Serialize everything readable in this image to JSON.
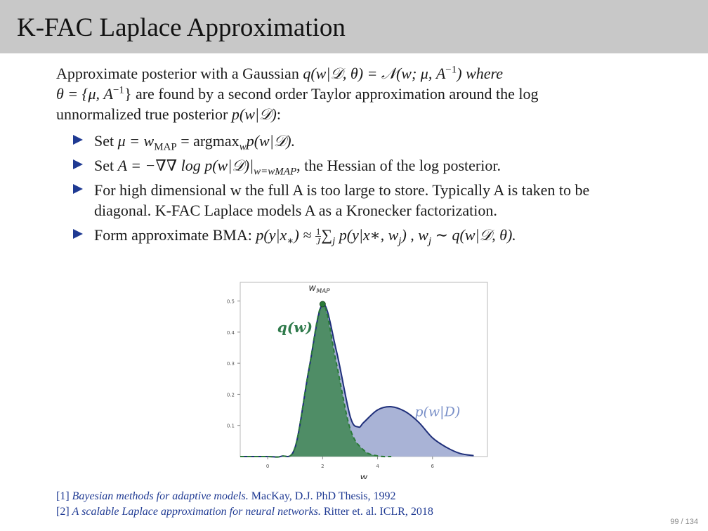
{
  "slide": {
    "title": "K-FAC Laplace Approximation",
    "page": "99 / 134"
  },
  "intro": {
    "line1_a": "Approximate posterior with a Gaussian ",
    "line1_b": "q(w|𝒟, θ) = 𝒩(w; μ, A",
    "line1_sup": "−1",
    "line1_c": ") where",
    "line2_a": "θ = {μ, A",
    "line2_sup": "−1",
    "line2_b": "} are found by a second order Taylor approximation around the log",
    "line3_a": "unnormalized true posterior ",
    "line3_b": "p(w|𝒟)",
    "line3_c": ":"
  },
  "bullets": {
    "b1_a": "Set ",
    "b1_b": "μ = w",
    "b1_sub": "MAP",
    "b1_c": " = argmax",
    "b1_sub2": "w",
    "b1_d": "p(w|𝒟).",
    "b2_a": "Set ",
    "b2_b": "A = −∇∇ log p(w|𝒟)|",
    "b2_sub": "w=wMAP",
    "b2_c": ", the Hessian of the log posterior.",
    "b3_line1": "For high dimensional w the full A is too large to store. Typically A is taken to be",
    "b3_line2": "diagonal. K-FAC Laplace models A as a Kronecker factorization.",
    "b4_a": "Form approximate BMA: ",
    "b4_b": "p(y|x",
    "b4_sub": "∗",
    "b4_c": ") ≈ ",
    "b4_frac_num": "1",
    "b4_frac_den": "J",
    "b4_d": "∑",
    "b4_sub2": "j",
    "b4_e": " p(y|x∗, w",
    "b4_sub3": "j",
    "b4_f": ") ,    w",
    "b4_sub4": "j",
    "b4_g": " ∼ q(w|𝒟, θ)."
  },
  "chart_data": {
    "type": "area",
    "xlabel": "w",
    "ylabel": "",
    "xlim": [
      -1,
      8
    ],
    "ylim": [
      0,
      0.56
    ],
    "xticks": [
      0,
      2,
      4,
      6
    ],
    "yticks": [
      0.1,
      0.2,
      0.3,
      0.4,
      0.5
    ],
    "ytick_labels": [
      "0.1",
      "0.2",
      "0.3",
      "0.4",
      "0.5"
    ],
    "grid": false,
    "annotations": {
      "map_label": "w",
      "map_label_sub": "MAP",
      "q_label": "q(w)",
      "p_label": "p(w|D)"
    },
    "series": [
      {
        "name": "p(w|D)",
        "style": "solid",
        "x": [
          -1,
          0,
          0.5,
          1,
          1.5,
          2,
          2.5,
          3,
          3.3,
          3.5,
          4,
          4.5,
          5,
          5.5,
          6,
          6.5,
          7,
          7.5
        ],
        "values": [
          0,
          0,
          0.001,
          0.03,
          0.28,
          0.49,
          0.34,
          0.13,
          0.095,
          0.11,
          0.15,
          0.16,
          0.145,
          0.11,
          0.06,
          0.03,
          0.01,
          0.003
        ]
      },
      {
        "name": "q(w)",
        "style": "dashed",
        "x": [
          -1,
          0,
          0.5,
          1,
          1.5,
          2,
          2.5,
          3,
          3.5,
          4,
          4.5
        ],
        "values": [
          0,
          0,
          0.001,
          0.03,
          0.28,
          0.49,
          0.3,
          0.09,
          0.02,
          0.002,
          0
        ]
      }
    ],
    "map_point": {
      "x": 2,
      "y": 0.49
    }
  },
  "colors": {
    "title_bar": "#c8c8c8",
    "posterior_line": "#1f2f7a",
    "posterior_fill": "#a9b3d6",
    "q_fill": "#4f8d66",
    "q_line": "#2a7a38",
    "q_label": "#2f7a4b",
    "p_label": "#7a90c8",
    "bullet": "#1f3a93"
  },
  "references": [
    {
      "num": "[1] ",
      "title": "Bayesian methods for adaptive models.",
      "rest": " MacKay, D.J. PhD Thesis, 1992"
    },
    {
      "num": "[2] ",
      "title": "A scalable Laplace approximation for neural networks.",
      "rest": " Ritter et. al. ICLR, 2018"
    }
  ]
}
